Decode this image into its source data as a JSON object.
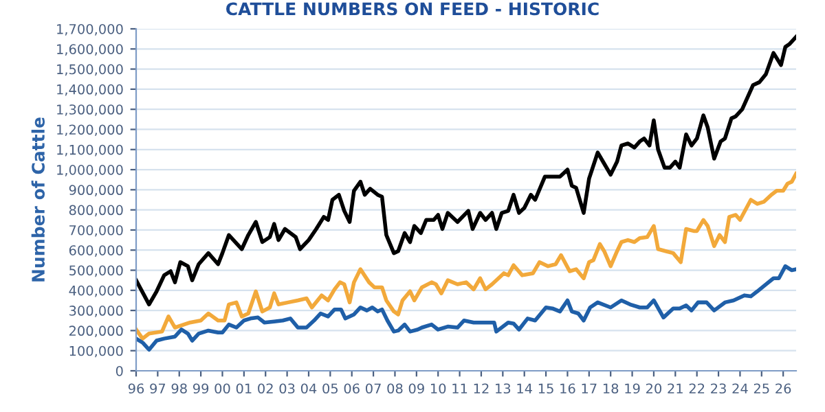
{
  "chart_data": {
    "type": "line",
    "title": "CATTLE NUMBERS ON FEED - HISTORIC",
    "ylabel": "Number of Cattle",
    "xlim": [
      1996,
      2026.6
    ],
    "xticks": [
      {
        "value": 1996,
        "label": "96"
      },
      {
        "value": 1997,
        "label": "97"
      },
      {
        "value": 1998,
        "label": "98"
      },
      {
        "value": 1999,
        "label": "99"
      },
      {
        "value": 2000,
        "label": "00"
      },
      {
        "value": 2001,
        "label": "01"
      },
      {
        "value": 2002,
        "label": "02"
      },
      {
        "value": 2003,
        "label": "03"
      },
      {
        "value": 2004,
        "label": "04"
      },
      {
        "value": 2005,
        "label": "05"
      },
      {
        "value": 2006,
        "label": "06"
      },
      {
        "value": 2007,
        "label": "07"
      },
      {
        "value": 2008,
        "label": "08"
      },
      {
        "value": 2009,
        "label": "09"
      },
      {
        "value": 2010,
        "label": "10"
      },
      {
        "value": 2011,
        "label": "11"
      },
      {
        "value": 2012,
        "label": "12"
      },
      {
        "value": 2013,
        "label": "13"
      },
      {
        "value": 2014,
        "label": "14"
      },
      {
        "value": 2015,
        "label": "15"
      },
      {
        "value": 2016,
        "label": "16"
      },
      {
        "value": 2017,
        "label": "17"
      },
      {
        "value": 2018,
        "label": "18"
      },
      {
        "value": 2019,
        "label": "19"
      },
      {
        "value": 2020,
        "label": "20"
      },
      {
        "value": 2021,
        "label": "21"
      },
      {
        "value": 2022,
        "label": "22"
      },
      {
        "value": 2023,
        "label": "23"
      },
      {
        "value": 2024,
        "label": "24"
      },
      {
        "value": 2025,
        "label": "25"
      },
      {
        "value": 2026,
        "label": "26"
      }
    ],
    "ylim": [
      0,
      1700000
    ],
    "yticks": [
      0,
      {
        "value": 100000,
        "label": "100,000"
      },
      {
        "value": 200000,
        "label": "200,000"
      },
      {
        "value": 300000,
        "label": "300,000"
      },
      {
        "value": 400000,
        "label": "400,000"
      },
      {
        "value": 500000,
        "label": "500,000"
      },
      {
        "value": 600000,
        "label": "600,000"
      },
      {
        "value": 700000,
        "label": "700,000"
      },
      {
        "value": 800000,
        "label": "800,000"
      },
      {
        "value": 900000,
        "label": "900,000"
      },
      {
        "value": 1000000,
        "label": "1,000,000"
      },
      {
        "value": 1100000,
        "label": "1,100,000"
      },
      {
        "value": 1200000,
        "label": "1,200,000"
      },
      {
        "value": 1300000,
        "label": "1,300,000"
      },
      {
        "value": 1400000,
        "label": "1,400,000"
      },
      {
        "value": 1500000,
        "label": "1,500,000"
      },
      {
        "value": 1600000,
        "label": "1,600,000"
      },
      {
        "value": 1700000,
        "label": "1,700,000"
      }
    ],
    "grid": "y",
    "marker": "none",
    "line_style": "solid",
    "series": [
      {
        "color": "#000000",
        "x": [
          1996.0,
          1996.6,
          1996.95,
          1997.3,
          1997.6,
          1997.8,
          1998.05,
          1998.4,
          1998.6,
          1998.9,
          1999.35,
          1999.8,
          2000.0,
          2000.3,
          2000.9,
          2001.2,
          2001.55,
          2001.85,
          2002.2,
          2002.4,
          2002.6,
          2002.9,
          2003.4,
          2003.6,
          2004.0,
          2004.35,
          2004.7,
          2004.9,
          2005.1,
          2005.4,
          2005.65,
          2005.9,
          2006.1,
          2006.4,
          2006.6,
          2006.85,
          2007.2,
          2007.4,
          2007.6,
          2007.95,
          2008.15,
          2008.45,
          2008.7,
          2008.9,
          2009.2,
          2009.45,
          2009.8,
          2010.0,
          2010.2,
          2010.45,
          2010.9,
          2011.4,
          2011.6,
          2011.95,
          2012.2,
          2012.5,
          2012.7,
          2012.95,
          2013.25,
          2013.5,
          2013.75,
          2014.0,
          2014.3,
          2014.5,
          2014.95,
          2015.3,
          2015.65,
          2016.0,
          2016.2,
          2016.4,
          2016.75,
          2017.0,
          2017.4,
          2017.7,
          2018.0,
          2018.3,
          2018.5,
          2018.8,
          2019.1,
          2019.35,
          2019.55,
          2019.8,
          2020.0,
          2020.2,
          2020.5,
          2020.75,
          2021.0,
          2021.2,
          2021.5,
          2021.75,
          2022.0,
          2022.3,
          2022.5,
          2022.8,
          2023.1,
          2023.3,
          2023.6,
          2023.8,
          2024.1,
          2024.6,
          2024.9,
          2025.2,
          2025.55,
          2025.9,
          2026.1,
          2026.3,
          2026.6
        ],
        "values": [
          450000,
          330000,
          395000,
          475000,
          495000,
          440000,
          540000,
          520000,
          450000,
          530000,
          585000,
          530000,
          585000,
          675000,
          605000,
          675000,
          740000,
          640000,
          665000,
          730000,
          650000,
          705000,
          665000,
          605000,
          650000,
          705000,
          765000,
          750000,
          850000,
          875000,
          795000,
          740000,
          895000,
          940000,
          875000,
          905000,
          875000,
          865000,
          675000,
          585000,
          595000,
          685000,
          640000,
          720000,
          685000,
          750000,
          750000,
          775000,
          705000,
          785000,
          740000,
          795000,
          705000,
          785000,
          750000,
          785000,
          705000,
          785000,
          795000,
          875000,
          785000,
          810000,
          875000,
          850000,
          965000,
          965000,
          965000,
          1000000,
          920000,
          910000,
          785000,
          955000,
          1085000,
          1030000,
          975000,
          1040000,
          1120000,
          1130000,
          1110000,
          1140000,
          1155000,
          1120000,
          1245000,
          1100000,
          1010000,
          1010000,
          1040000,
          1010000,
          1175000,
          1120000,
          1155000,
          1270000,
          1210000,
          1055000,
          1140000,
          1155000,
          1255000,
          1265000,
          1300000,
          1420000,
          1435000,
          1475000,
          1580000,
          1520000,
          1610000,
          1625000,
          1660000
        ]
      },
      {
        "color": "#f2a93b",
        "x": [
          1996.0,
          1996.3,
          1996.6,
          1997.2,
          1997.5,
          1997.8,
          1998.5,
          1999.0,
          1999.35,
          1999.8,
          2000.1,
          2000.3,
          2000.65,
          2000.9,
          2001.2,
          2001.55,
          2001.85,
          2002.2,
          2002.4,
          2002.6,
          2003.05,
          2003.5,
          2003.9,
          2004.15,
          2004.6,
          2004.9,
          2005.2,
          2005.45,
          2005.65,
          2005.9,
          2006.1,
          2006.4,
          2006.8,
          2007.05,
          2007.4,
          2007.6,
          2007.95,
          2008.15,
          2008.35,
          2008.7,
          2008.9,
          2009.25,
          2009.7,
          2009.9,
          2010.15,
          2010.45,
          2010.9,
          2011.3,
          2011.65,
          2011.95,
          2012.2,
          2012.5,
          2013.05,
          2013.25,
          2013.5,
          2013.9,
          2014.4,
          2014.7,
          2015.1,
          2015.45,
          2015.7,
          2016.1,
          2016.4,
          2016.75,
          2017.0,
          2017.2,
          2017.5,
          2017.7,
          2018.0,
          2018.3,
          2018.5,
          2018.8,
          2019.1,
          2019.35,
          2019.7,
          2020.0,
          2020.2,
          2020.55,
          2020.9,
          2021.25,
          2021.5,
          2021.85,
          2022.0,
          2022.3,
          2022.5,
          2022.8,
          2023.05,
          2023.3,
          2023.5,
          2023.8,
          2024.0,
          2024.5,
          2024.8,
          2025.1,
          2025.45,
          2025.7,
          2026.0,
          2026.2,
          2026.4,
          2026.6
        ],
        "values": [
          205000,
          160000,
          185000,
          195000,
          270000,
          215000,
          240000,
          250000,
          285000,
          250000,
          250000,
          330000,
          340000,
          270000,
          285000,
          395000,
          295000,
          315000,
          385000,
          330000,
          340000,
          350000,
          360000,
          315000,
          375000,
          350000,
          405000,
          440000,
          430000,
          340000,
          440000,
          505000,
          440000,
          415000,
          415000,
          350000,
          295000,
          280000,
          350000,
          395000,
          350000,
          415000,
          440000,
          430000,
          385000,
          450000,
          430000,
          440000,
          405000,
          460000,
          405000,
          430000,
          485000,
          475000,
          525000,
          475000,
          485000,
          540000,
          520000,
          530000,
          575000,
          495000,
          505000,
          460000,
          540000,
          550000,
          630000,
          595000,
          520000,
          595000,
          640000,
          650000,
          640000,
          660000,
          665000,
          720000,
          605000,
          595000,
          585000,
          540000,
          705000,
          695000,
          695000,
          750000,
          720000,
          620000,
          675000,
          640000,
          765000,
          775000,
          750000,
          850000,
          830000,
          840000,
          875000,
          895000,
          895000,
          930000,
          940000,
          980000
        ]
      },
      {
        "color": "#1f5fa8",
        "x": [
          1996.0,
          1996.3,
          1996.6,
          1996.95,
          1997.3,
          1997.8,
          1998.1,
          1998.4,
          1998.6,
          1998.9,
          1999.35,
          1999.8,
          2000.0,
          2000.3,
          2000.65,
          2001.0,
          2001.3,
          2001.65,
          2001.95,
          2002.4,
          2002.8,
          2003.15,
          2003.5,
          2003.9,
          2004.25,
          2004.55,
          2004.9,
          2005.2,
          2005.5,
          2005.7,
          2006.1,
          2006.4,
          2006.7,
          2006.95,
          2007.2,
          2007.4,
          2007.65,
          2007.95,
          2008.15,
          2008.45,
          2008.7,
          2009.05,
          2009.25,
          2009.7,
          2010.0,
          2010.45,
          2010.9,
          2011.2,
          2011.65,
          2011.95,
          2012.3,
          2012.6,
          2012.7,
          2013.25,
          2013.5,
          2013.75,
          2014.15,
          2014.5,
          2015.0,
          2015.3,
          2015.65,
          2016.0,
          2016.2,
          2016.5,
          2016.75,
          2017.05,
          2017.4,
          2018.0,
          2018.5,
          2018.9,
          2019.35,
          2019.7,
          2020.0,
          2020.45,
          2020.9,
          2021.2,
          2021.5,
          2021.75,
          2022.05,
          2022.45,
          2022.8,
          2023.3,
          2023.7,
          2024.2,
          2024.5,
          2024.8,
          2025.2,
          2025.55,
          2025.8,
          2026.1,
          2026.4,
          2026.6
        ],
        "values": [
          160000,
          140000,
          105000,
          150000,
          160000,
          170000,
          205000,
          185000,
          150000,
          185000,
          200000,
          190000,
          190000,
          230000,
          215000,
          250000,
          260000,
          265000,
          240000,
          245000,
          250000,
          260000,
          215000,
          215000,
          250000,
          285000,
          270000,
          305000,
          305000,
          260000,
          280000,
          315000,
          300000,
          315000,
          295000,
          305000,
          250000,
          195000,
          200000,
          230000,
          195000,
          205000,
          215000,
          230000,
          205000,
          220000,
          215000,
          250000,
          240000,
          240000,
          240000,
          240000,
          195000,
          240000,
          235000,
          205000,
          260000,
          250000,
          315000,
          310000,
          295000,
          350000,
          295000,
          285000,
          250000,
          315000,
          340000,
          315000,
          350000,
          330000,
          315000,
          315000,
          350000,
          265000,
          310000,
          310000,
          325000,
          300000,
          340000,
          340000,
          300000,
          340000,
          350000,
          375000,
          370000,
          395000,
          430000,
          460000,
          460000,
          520000,
          500000,
          505000
        ]
      }
    ]
  }
}
